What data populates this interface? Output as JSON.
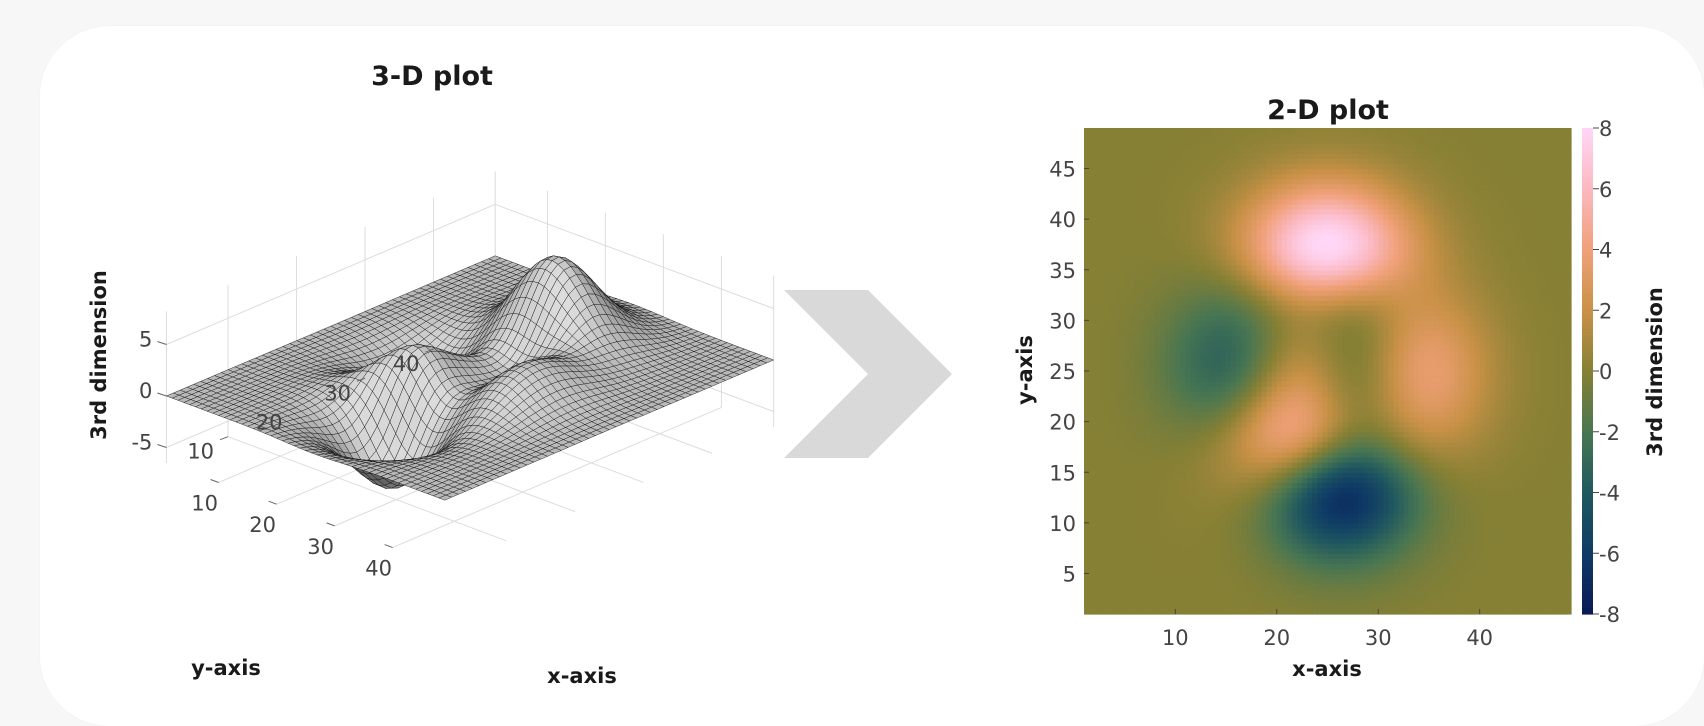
{
  "chart_data": [
    {
      "type": "surface",
      "title": "3-D plot",
      "xlabel": "x-axis",
      "ylabel": "y-axis",
      "zlabel": "3rd dimension",
      "x_ticks": [
        10,
        20,
        30,
        40
      ],
      "y_ticks": [
        10,
        20,
        30,
        40
      ],
      "z_ticks": [
        -5,
        0,
        5
      ],
      "xlim": [
        1,
        49
      ],
      "ylim": [
        1,
        49
      ],
      "zlim": [
        -6.5,
        8.2
      ],
      "grid": "on",
      "surface_color": "#9a9a9a",
      "mesh_color": "#111111",
      "features": [
        {
          "x": 25,
          "y": 38,
          "z": 8.0
        },
        {
          "x": 27,
          "y": 12,
          "z": -6.5
        },
        {
          "x": 14,
          "y": 26,
          "z": -3.0
        },
        {
          "x": 36,
          "y": 25,
          "z": 3.0
        },
        {
          "x": 20,
          "y": 19,
          "z": 3.5
        }
      ]
    },
    {
      "type": "heatmap",
      "title": "2-D plot",
      "xlabel": "x-axis",
      "ylabel": "y-axis",
      "colorbar_label": "3rd dimension",
      "x_ticks": [
        10,
        20,
        30,
        40
      ],
      "y_ticks": [
        5,
        10,
        15,
        20,
        25,
        30,
        35,
        40,
        45
      ],
      "colorbar_ticks": [
        -8,
        -6,
        -4,
        -2,
        0,
        2,
        4,
        6,
        8
      ],
      "xlim": [
        1,
        49
      ],
      "ylim": [
        1,
        49
      ],
      "clim": [
        -8,
        8
      ],
      "colormap": [
        {
          "value": -8,
          "color": "#0a1a55"
        },
        {
          "value": -6,
          "color": "#0e3a66"
        },
        {
          "value": -4,
          "color": "#20585f"
        },
        {
          "value": -2,
          "color": "#487652"
        },
        {
          "value": 0,
          "color": "#868034"
        },
        {
          "value": 2,
          "color": "#c99147"
        },
        {
          "value": 4,
          "color": "#f0a078"
        },
        {
          "value": 6,
          "color": "#fbb8c0"
        },
        {
          "value": 8,
          "color": "#ffd6f6"
        }
      ]
    }
  ],
  "connector": {
    "icon": "chevron-right-icon",
    "color": "#d9d9d9"
  }
}
